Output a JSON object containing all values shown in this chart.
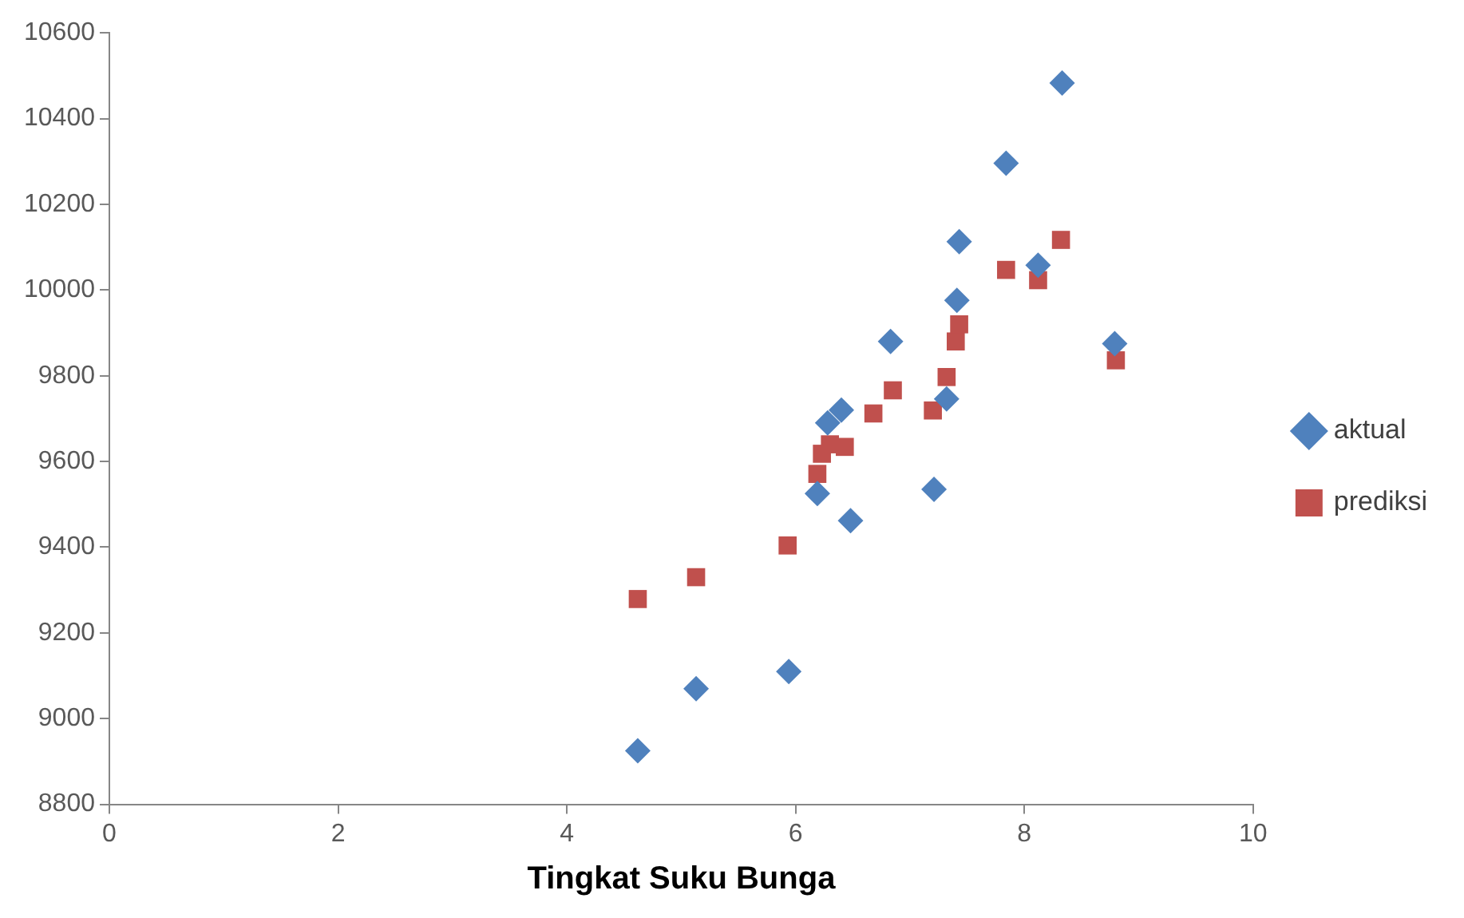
{
  "chart_data": {
    "type": "scatter",
    "xlabel": "Tingkat Suku Bunga",
    "xlim": [
      0,
      10
    ],
    "xticks": [
      0,
      2,
      4,
      6,
      8,
      10
    ],
    "ylim": [
      8800,
      10600
    ],
    "yticks": [
      8800,
      9000,
      9200,
      9400,
      9600,
      9800,
      10000,
      10200,
      10400,
      10600
    ],
    "grid": false,
    "legend": "right",
    "series": [
      {
        "name": "aktual",
        "color": "#4f81bd",
        "marker": "diamond",
        "x": [
          4.62,
          5.13,
          5.94,
          6.19,
          6.28,
          6.4,
          6.48,
          6.83,
          7.21,
          7.32,
          7.41,
          7.43,
          7.84,
          8.12,
          8.33,
          8.79
        ],
        "values": [
          8925,
          9070,
          9110,
          9525,
          9690,
          9720,
          9462,
          9880,
          9535,
          9746,
          9976,
          10113,
          10296,
          10058,
          10483,
          9875
        ]
      },
      {
        "name": "prediksi",
        "color": "#c0504d",
        "marker": "square",
        "x": [
          4.62,
          5.13,
          5.93,
          6.19,
          6.23,
          6.3,
          6.43,
          6.68,
          6.85,
          7.2,
          7.32,
          7.4,
          7.43,
          7.84,
          8.12,
          8.32,
          8.8
        ],
        "values": [
          9279,
          9330,
          9404,
          9571,
          9618,
          9640,
          9634,
          9712,
          9766,
          9719,
          9797,
          9880,
          9920,
          10047,
          10023,
          10117,
          9836
        ]
      }
    ]
  }
}
